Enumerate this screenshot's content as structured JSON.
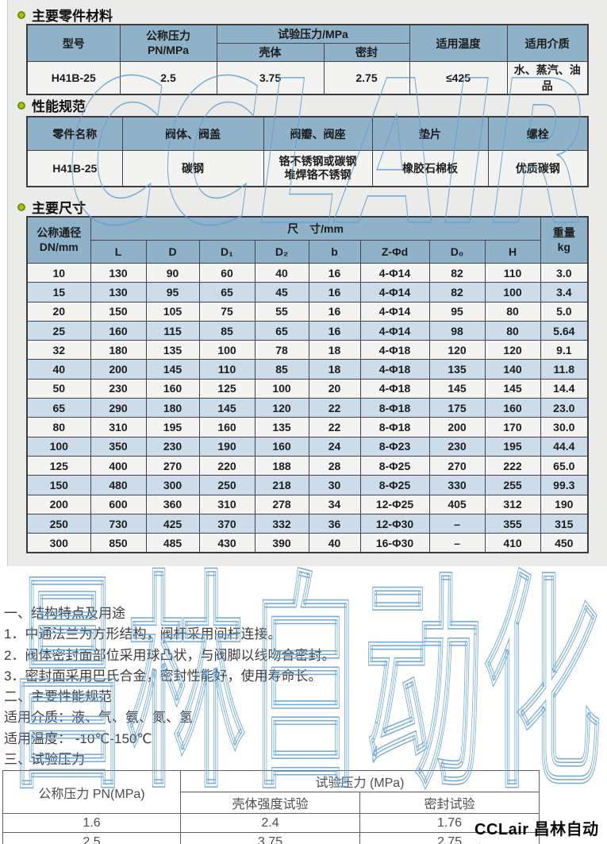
{
  "colors": {
    "header_blue": "#8fb2c9",
    "row_alt_blue": "#cddcea",
    "row_light": "#f3f4f1",
    "panel_gray": "#ebece9",
    "bullet_green": "#a3c515",
    "watermark_blue": "#5f9fd4"
  },
  "watermarks": {
    "top": "CCLAIR",
    "bottom": "昌林自动化"
  },
  "footer": {
    "brand": "CCLair 昌林自动化"
  },
  "section_materials": {
    "title": "主要零件材料",
    "header": {
      "model": "型号",
      "pn": "公称压力\nPN/MPa",
      "test_pressure": "试验压力/MPa",
      "shell": "壳体",
      "seal": "密封",
      "temp": "适用温度",
      "media": "适用介质"
    },
    "row": {
      "model": "H41B-25",
      "pn": "2.5",
      "shell": "3.75",
      "seal": "2.75",
      "temp": "≤425",
      "media": "水、蒸汽、油品"
    }
  },
  "section_performance": {
    "title": "性能规范",
    "headers": [
      "零件名称",
      "阀体、阀盖",
      "阀瓣、阀座",
      "垫片",
      "螺栓"
    ],
    "row": [
      "H41B-25",
      "碳钢",
      "铬不锈钢或碳钢\n堆焊铬不锈钢",
      "橡胶石棉板",
      "优质碳钢"
    ]
  },
  "section_dimensions": {
    "title": "主要尺寸",
    "header": {
      "dn": "公称通径\nDN/mm",
      "size_group": "尺　寸/mm",
      "cols": [
        "L",
        "D",
        "D₁",
        "D₂",
        "b",
        "Z-Φd",
        "D₀",
        "H"
      ],
      "weight": "重量\nkg"
    },
    "rows": [
      [
        "10",
        "130",
        "90",
        "60",
        "40",
        "16",
        "4-Φ14",
        "82",
        "110",
        "3.0"
      ],
      [
        "15",
        "130",
        "95",
        "65",
        "45",
        "16",
        "4-Φ14",
        "82",
        "100",
        "3.4"
      ],
      [
        "20",
        "150",
        "105",
        "75",
        "55",
        "16",
        "4-Φ14",
        "95",
        "80",
        "5.0"
      ],
      [
        "25",
        "160",
        "115",
        "85",
        "65",
        "16",
        "4-Φ14",
        "98",
        "80",
        "5.64"
      ],
      [
        "32",
        "180",
        "135",
        "100",
        "78",
        "18",
        "4-Φ18",
        "120",
        "120",
        "9.1"
      ],
      [
        "40",
        "200",
        "145",
        "110",
        "85",
        "18",
        "4-Φ18",
        "135",
        "140",
        "11.8"
      ],
      [
        "50",
        "230",
        "160",
        "125",
        "100",
        "20",
        "4-Φ18",
        "145",
        "145",
        "14.4"
      ],
      [
        "65",
        "290",
        "180",
        "145",
        "120",
        "22",
        "8-Φ18",
        "175",
        "160",
        "23.0"
      ],
      [
        "80",
        "310",
        "195",
        "160",
        "135",
        "22",
        "8-Φ18",
        "200",
        "170",
        "30.0"
      ],
      [
        "100",
        "350",
        "230",
        "190",
        "160",
        "24",
        "8-Φ23",
        "230",
        "195",
        "44.4"
      ],
      [
        "125",
        "400",
        "270",
        "220",
        "188",
        "28",
        "8-Φ25",
        "270",
        "222",
        "65.0"
      ],
      [
        "150",
        "480",
        "300",
        "250",
        "218",
        "30",
        "8-Φ25",
        "330",
        "255",
        "99.3"
      ],
      [
        "200",
        "600",
        "360",
        "310",
        "278",
        "34",
        "12-Φ25",
        "405",
        "312",
        "190"
      ],
      [
        "250",
        "730",
        "425",
        "370",
        "332",
        "36",
        "12-Φ30",
        "–",
        "355",
        "315"
      ],
      [
        "300",
        "850",
        "485",
        "430",
        "390",
        "40",
        "16-Φ30",
        "–",
        "410",
        "450"
      ]
    ]
  },
  "notes": {
    "lines": [
      "一、结构特点及用途",
      "1．中通法兰为方形结构，阀杆采用间杆连接。",
      "2．阀体密封面部位采用球凸状，与阀脚以线吻合密封。",
      "3．密封面采用巴氏合金，密封性能好，使用寿命长。",
      "二、主要性能规范",
      "适用介质：液、气、氨、氮、氢",
      "适用温度： -10℃-150℃",
      "三、试验压力"
    ]
  },
  "section_test_pressure": {
    "header": {
      "pn": "公称压力 PN(MPa)",
      "test": "试验压力 (MPa)",
      "shell": "壳体强度试验",
      "seal": "密封试验"
    },
    "rows": [
      [
        "1.6",
        "2.4",
        "1.76"
      ],
      [
        "2.5",
        "3.75",
        "2.75"
      ]
    ]
  }
}
